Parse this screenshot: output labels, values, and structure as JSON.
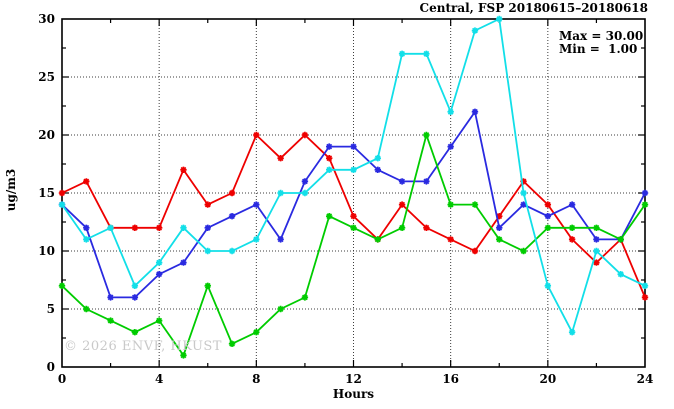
{
  "chart_data": {
    "type": "line",
    "title": "Central, FSP 20180615–20180618",
    "xlabel": "Hours",
    "ylabel": "ug/m3",
    "watermark": "© 2026 ENVF, HKUST",
    "xlim": [
      0,
      24
    ],
    "ylim": [
      0,
      30
    ],
    "x_ticks": [
      0,
      4,
      8,
      12,
      16,
      20,
      24
    ],
    "y_ticks": [
      0,
      5,
      10,
      15,
      20,
      25,
      30
    ],
    "x_minor_step": 2,
    "y_minor_step": 2.5,
    "grid": "dotted black, vertical at major x ticks, horizontal at major y ticks",
    "legend": {
      "position": "top-right",
      "max_label": "Max = 30.00",
      "min_label": "Min =  1.00"
    },
    "x": [
      0,
      1,
      2,
      3,
      4,
      5,
      6,
      7,
      8,
      9,
      10,
      11,
      12,
      13,
      14,
      15,
      16,
      17,
      18,
      19,
      20,
      21,
      22,
      23,
      24
    ],
    "series": [
      {
        "name": "red",
        "color": "#ee0000",
        "values": [
          15,
          16,
          12,
          12,
          12,
          17,
          14,
          15,
          20,
          18,
          20,
          18,
          13,
          11,
          14,
          12,
          11,
          10,
          13,
          16,
          14,
          11,
          9,
          11,
          6
        ]
      },
      {
        "name": "blue",
        "color": "#2a2ae0",
        "values": [
          14,
          12,
          6,
          6,
          8,
          9,
          12,
          13,
          14,
          11,
          16,
          19,
          19,
          17,
          16,
          16,
          19,
          22,
          12,
          14,
          13,
          14,
          11,
          11,
          15
        ]
      },
      {
        "name": "green",
        "color": "#00cc00",
        "values": [
          7,
          5,
          4,
          3,
          4,
          1,
          7,
          2,
          3,
          5,
          6,
          13,
          12,
          11,
          12,
          20,
          14,
          14,
          11,
          10,
          12,
          12,
          12,
          11,
          14
        ]
      },
      {
        "name": "cyan",
        "color": "#12dfe8",
        "values": [
          14,
          11,
          12,
          7,
          9,
          12,
          10,
          10,
          11,
          15,
          15,
          17,
          17,
          18,
          27,
          27,
          22,
          29,
          30,
          15,
          7,
          3,
          10,
          8,
          7
        ]
      }
    ]
  }
}
